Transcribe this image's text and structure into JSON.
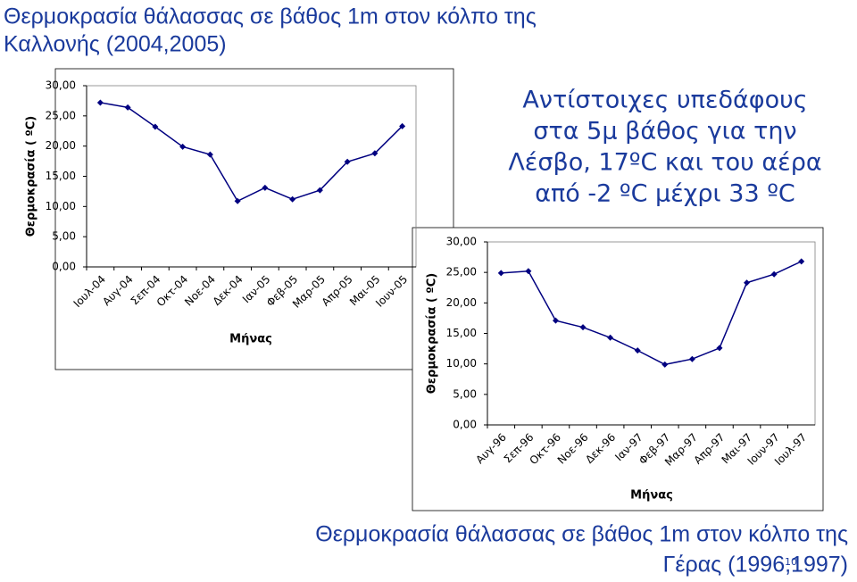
{
  "chart_data": [
    {
      "type": "line",
      "title": [
        "Θερμοκρασία θάλασσας σε βάθος 1m στον κόλπο της",
        "Καλλονής (2004,2005)"
      ],
      "x_label": "Μήνας",
      "y_label": "Θερμοκρασία ( ºC)",
      "categories": [
        "Ιουλ-04",
        "Αυγ-04",
        "Σεπ-04",
        "Οκτ-04",
        "Νοε-04",
        "Δεκ-04",
        "Ιαν-05",
        "Φεβ-05",
        "Μαρ-05",
        "Απρ-05",
        "Μαι-05",
        "Ιουν-05"
      ],
      "values": [
        27.2,
        26.4,
        23.2,
        19.9,
        18.6,
        10.9,
        13.1,
        11.2,
        12.7,
        17.4,
        18.8,
        23.3
      ],
      "color": "#000080",
      "ylim": [
        0,
        30
      ],
      "yticks": [
        {
          "value": 0,
          "label": "0,00"
        },
        {
          "value": 5,
          "label": "5,00"
        },
        {
          "value": 10,
          "label": "10,00"
        },
        {
          "value": 15,
          "label": "15,00"
        },
        {
          "value": 20,
          "label": "20,00"
        },
        {
          "value": 25,
          "label": "25,00"
        },
        {
          "value": 30,
          "label": "30,00"
        }
      ]
    },
    {
      "type": "line",
      "title": [
        "Θερμοκρασία θάλασσας σε βάθος 1m στον κόλπο της",
        "Γέρας (1996,1997)"
      ],
      "x_label": "Μήνας",
      "y_label": "Θερμοκρασία ( ºC)",
      "categories": [
        "Αυγ-96",
        "Σεπ-96",
        "Οκτ-96",
        "Νοε-96",
        "Δεκ-96",
        "Ιαν-97",
        "Φεβ-97",
        "Μαρ-97",
        "Απρ-97",
        "Μαι-97",
        "Ιουν-97",
        "Ιουλ-97"
      ],
      "values": [
        24.9,
        25.2,
        17.1,
        16.0,
        14.3,
        12.2,
        9.9,
        10.8,
        12.6,
        23.3,
        24.7,
        26.8
      ],
      "color": "#000080",
      "ylim": [
        0,
        30
      ],
      "yticks": [
        {
          "value": 0,
          "label": "0,00"
        },
        {
          "value": 5,
          "label": "5,00"
        },
        {
          "value": 10,
          "label": "10,00"
        },
        {
          "value": 15,
          "label": "15,00"
        },
        {
          "value": 20,
          "label": "20,00"
        },
        {
          "value": 25,
          "label": "25,00"
        },
        {
          "value": 30,
          "label": "30,00"
        }
      ]
    }
  ],
  "note": [
    "Αντίστοιχες υπεδάφους",
    "στα 5μ βάθος για την",
    "Λέσβο, 17ºC και του αέρα",
    "από -2 ºC μέχρι 33 ºC"
  ],
  "page_number": "10"
}
